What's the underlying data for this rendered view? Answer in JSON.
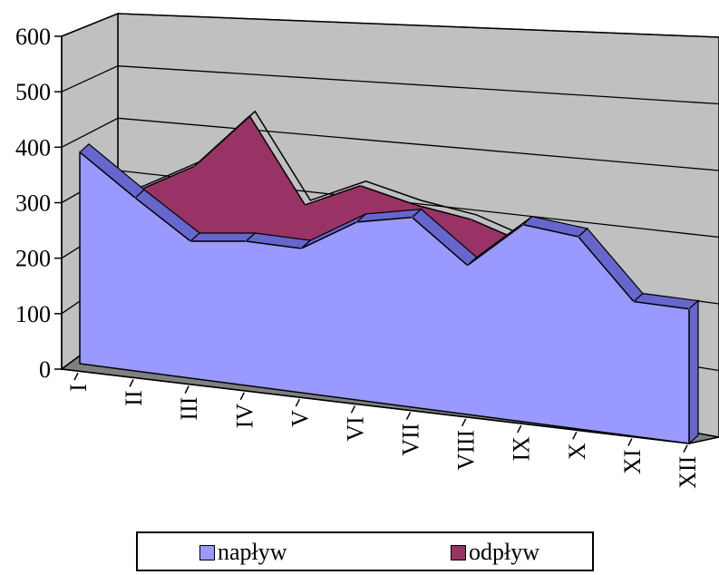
{
  "chart_data": {
    "type": "area",
    "style": "3d",
    "title": "",
    "xlabel": "",
    "ylabel": "",
    "categories": [
      "I",
      "II",
      "III",
      "IV",
      "V",
      "VI",
      "VII",
      "VIII",
      "IX",
      "X",
      "XI",
      "XII"
    ],
    "yticks": [
      "0",
      "100",
      "200",
      "300",
      "400",
      "500",
      "600"
    ],
    "ylim": [
      0,
      600
    ],
    "grid": true,
    "legend_position": "bottom",
    "series": [
      {
        "name": "napływ",
        "color": "#9999ff",
        "values": [
          440,
          360,
          285,
          300,
          300,
          370,
          395,
          310,
          410,
          400,
          280,
          280
        ]
      },
      {
        "name": "odpływ",
        "color": "#993366",
        "values": [
          300,
          355,
          420,
          540,
          370,
          425,
          400,
          385,
          350,
          385,
          210,
          175
        ]
      }
    ]
  }
}
